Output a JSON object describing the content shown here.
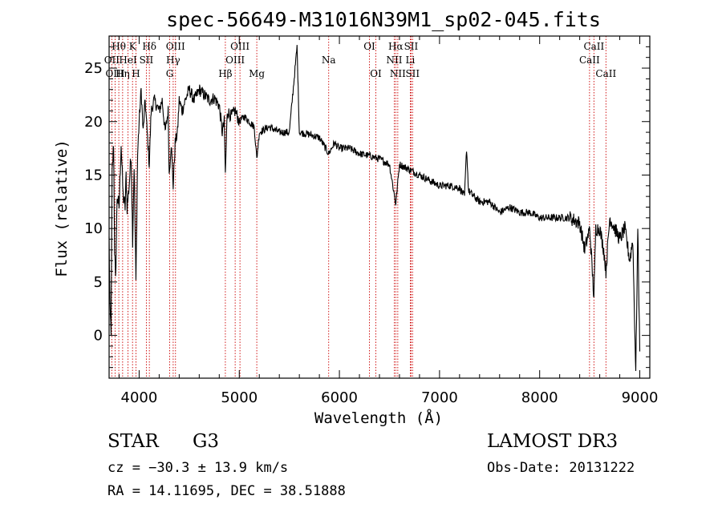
{
  "chart_data": {
    "type": "line",
    "title": "spec-56649-M31016N39M1_sp02-045.fits",
    "xlabel": "Wavelength (Å)",
    "ylabel": "Flux (relative)",
    "xlim": [
      3700,
      9100
    ],
    "ylim": [
      -4,
      28
    ],
    "xticks": [
      4000,
      5000,
      6000,
      7000,
      8000,
      9000
    ],
    "yticks": [
      0,
      5,
      10,
      15,
      20,
      25
    ],
    "colors": {
      "spectrum": "#000000",
      "line_marker": "#cc0000",
      "axis": "#000000"
    },
    "anchors": [
      [
        3700,
        9
      ],
      [
        3710,
        2
      ],
      [
        3720,
        0.5
      ],
      [
        3730,
        15
      ],
      [
        3745,
        18
      ],
      [
        3755,
        8
      ],
      [
        3765,
        5
      ],
      [
        3780,
        13
      ],
      [
        3800,
        12
      ],
      [
        3820,
        18
      ],
      [
        3840,
        13
      ],
      [
        3860,
        12
      ],
      [
        3870,
        15
      ],
      [
        3880,
        12
      ],
      [
        3900,
        14
      ],
      [
        3920,
        17
      ],
      [
        3935,
        9
      ],
      [
        3950,
        16
      ],
      [
        3968,
        5
      ],
      [
        3985,
        17
      ],
      [
        4000,
        20
      ],
      [
        4020,
        23
      ],
      [
        4040,
        19
      ],
      [
        4060,
        22
      ],
      [
        4080,
        19
      ],
      [
        4101,
        16
      ],
      [
        4120,
        21
      ],
      [
        4150,
        22
      ],
      [
        4200,
        21
      ],
      [
        4230,
        22
      ],
      [
        4260,
        19
      ],
      [
        4290,
        21
      ],
      [
        4300,
        15
      ],
      [
        4320,
        18
      ],
      [
        4340,
        14
      ],
      [
        4360,
        18
      ],
      [
        4383,
        19
      ],
      [
        4400,
        22
      ],
      [
        4430,
        21
      ],
      [
        4460,
        22
      ],
      [
        4500,
        23
      ],
      [
        4550,
        22
      ],
      [
        4600,
        23
      ],
      [
        4650,
        22.5
      ],
      [
        4700,
        22
      ],
      [
        4750,
        22.2
      ],
      [
        4800,
        21.5
      ],
      [
        4830,
        19
      ],
      [
        4850,
        20
      ],
      [
        4861,
        15
      ],
      [
        4880,
        21
      ],
      [
        4920,
        20.5
      ],
      [
        4960,
        21
      ],
      [
        5000,
        20
      ],
      [
        5050,
        20.5
      ],
      [
        5100,
        20
      ],
      [
        5150,
        19.5
      ],
      [
        5175,
        16.5
      ],
      [
        5200,
        19
      ],
      [
        5300,
        19.5
      ],
      [
        5400,
        19
      ],
      [
        5500,
        19
      ],
      [
        5577,
        27
      ],
      [
        5600,
        19
      ],
      [
        5700,
        18.8
      ],
      [
        5800,
        18.5
      ],
      [
        5893,
        17
      ],
      [
        5950,
        18
      ],
      [
        6000,
        17.5
      ],
      [
        6100,
        17.5
      ],
      [
        6200,
        17
      ],
      [
        6300,
        16.8
      ],
      [
        6400,
        16.5
      ],
      [
        6500,
        16
      ],
      [
        6563,
        12.3
      ],
      [
        6600,
        16
      ],
      [
        6700,
        15.5
      ],
      [
        6800,
        15
      ],
      [
        6900,
        14.5
      ],
      [
        7000,
        14
      ],
      [
        7100,
        14
      ],
      [
        7200,
        13.8
      ],
      [
        7250,
        13
      ],
      [
        7270,
        17.5
      ],
      [
        7290,
        13.5
      ],
      [
        7400,
        12.5
      ],
      [
        7500,
        12.5
      ],
      [
        7600,
        11.5
      ],
      [
        7700,
        12
      ],
      [
        7800,
        11.5
      ],
      [
        7900,
        11.5
      ],
      [
        8000,
        11
      ],
      [
        8100,
        11
      ],
      [
        8200,
        11
      ],
      [
        8300,
        11
      ],
      [
        8400,
        10.5
      ],
      [
        8450,
        8
      ],
      [
        8500,
        10
      ],
      [
        8542,
        3.5
      ],
      [
        8560,
        10
      ],
      [
        8600,
        10
      ],
      [
        8640,
        8
      ],
      [
        8662,
        6
      ],
      [
        8700,
        11
      ],
      [
        8750,
        10
      ],
      [
        8800,
        9
      ],
      [
        8850,
        10
      ],
      [
        8900,
        7
      ],
      [
        8930,
        9
      ],
      [
        8960,
        -3.5
      ],
      [
        8980,
        10
      ],
      [
        9000,
        -1.5
      ]
    ],
    "lines": [
      {
        "label": "Hθ",
        "wave": 3797,
        "row": 0,
        "pos": "top"
      },
      {
        "label": "OII",
        "wave": 3727,
        "row": 1,
        "pos": "top"
      },
      {
        "label": "OIII",
        "wave": 3760,
        "row": 2,
        "pos": "top"
      },
      {
        "label": "HeI",
        "wave": 3889,
        "row": 1,
        "pos": "top"
      },
      {
        "label": "Hη",
        "wave": 3835,
        "row": 2,
        "pos": "top"
      },
      {
        "label": "K",
        "wave": 3934,
        "row": 0,
        "pos": "top"
      },
      {
        "label": "SII",
        "wave": 4072,
        "row": 1,
        "pos": "top"
      },
      {
        "label": "H",
        "wave": 3968,
        "row": 2,
        "pos": "top"
      },
      {
        "label": "Hδ",
        "wave": 4102,
        "row": 0,
        "pos": "top"
      },
      {
        "label": "OIII",
        "wave": 4363,
        "row": 0,
        "pos": "top"
      },
      {
        "label": "Hγ",
        "wave": 4340,
        "row": 1,
        "pos": "top"
      },
      {
        "label": "G",
        "wave": 4305,
        "row": 2,
        "pos": "top"
      },
      {
        "label": "Hβ",
        "wave": 4861,
        "row": 2,
        "pos": "top"
      },
      {
        "label": "OIII",
        "wave": 5007,
        "row": 0,
        "pos": "top"
      },
      {
        "label": "OIII",
        "wave": 4959,
        "row": 1,
        "pos": "top"
      },
      {
        "label": "Mg",
        "wave": 5175,
        "row": 2,
        "pos": "top"
      },
      {
        "label": "Na",
        "wave": 5893,
        "row": 1,
        "pos": "top"
      },
      {
        "label": "OI",
        "wave": 6300,
        "row": 0,
        "pos": "top"
      },
      {
        "label": "OI",
        "wave": 6364,
        "row": 2,
        "pos": "top"
      },
      {
        "label": "Hα",
        "wave": 6563,
        "row": 0,
        "pos": "top"
      },
      {
        "label": "NII",
        "wave": 6548,
        "row": 1,
        "pos": "top"
      },
      {
        "label": "NII",
        "wave": 6583,
        "row": 2,
        "pos": "top"
      },
      {
        "label": "SII",
        "wave": 6716,
        "row": 0,
        "pos": "top"
      },
      {
        "label": "Li",
        "wave": 6708,
        "row": 1,
        "pos": "top"
      },
      {
        "label": "SII",
        "wave": 6731,
        "row": 2,
        "pos": "top"
      },
      {
        "label": "CaII",
        "wave": 8542,
        "row": 0,
        "pos": "top"
      },
      {
        "label": "CaII",
        "wave": 8498,
        "row": 1,
        "pos": "top"
      },
      {
        "label": "CaII",
        "wave": 8662,
        "row": 2,
        "pos": "top"
      }
    ]
  },
  "info": {
    "class_label": "STAR",
    "subclass": "G3",
    "survey": "LAMOST DR3",
    "redshift": "cz = −30.3 ± 13.9 km/s",
    "obs_date": "Obs-Date: 20131222",
    "coords": "RA =  14.11695, DEC =  38.51888"
  }
}
